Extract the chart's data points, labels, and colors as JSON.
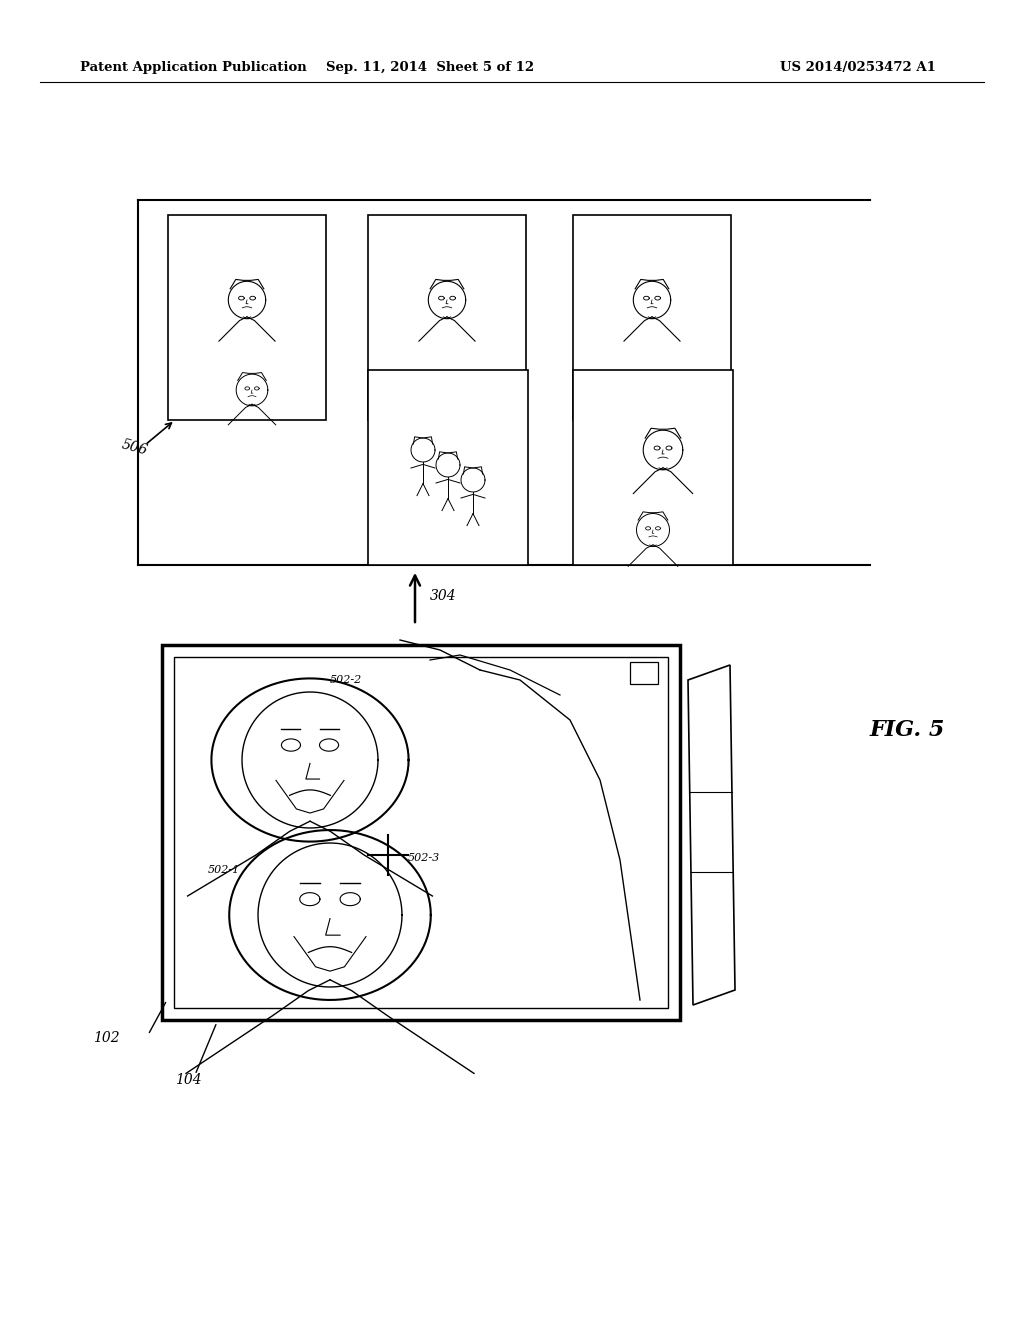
{
  "bg_color": "#ffffff",
  "header_left": "Patent Application Publication",
  "header_mid": "Sep. 11, 2014  Sheet 5 of 12",
  "header_right": "US 2014/0253472 A1",
  "fig_label": "FIG. 5",
  "label_506": "506",
  "label_304": "304",
  "label_102": "102",
  "label_104": "104",
  "label_502_1": "502-1",
  "label_502_2": "502-2",
  "label_502_3": "502-3"
}
